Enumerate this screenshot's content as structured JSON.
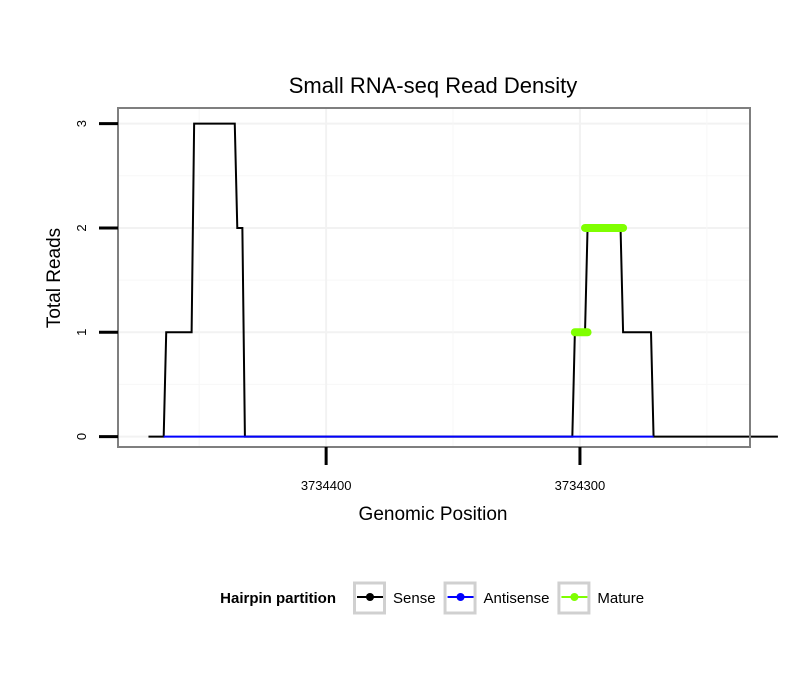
{
  "chart_data": {
    "type": "line",
    "title": "Small RNA-seq Read Density",
    "xlabel": "Genomic Position",
    "ylabel": "Total Reads",
    "x_reversed": true,
    "xlim": [
      3734482,
      3734233
    ],
    "ylim": [
      -0.1,
      3.15
    ],
    "xticks": [
      3734400,
      3734300
    ],
    "xtick_labels": [
      "3734400",
      "3734300"
    ],
    "yticks": [
      0,
      1,
      2,
      3
    ],
    "ytick_labels": [
      "0",
      "1",
      "2",
      "3"
    ],
    "grid": true,
    "legend": {
      "title": "Hairpin partition",
      "position": "bottom",
      "entries": [
        {
          "label": "Sense",
          "color": "#000000"
        },
        {
          "label": "Antisense",
          "color": "#0000ff"
        },
        {
          "label": "Mature",
          "color": "#7fff00"
        }
      ]
    },
    "series": [
      {
        "name": "Sense",
        "color": "#000000",
        "points": [
          [
            3734470,
            0
          ],
          [
            3734464,
            0
          ],
          [
            3734463,
            1
          ],
          [
            3734453,
            1
          ],
          [
            3734452,
            3
          ],
          [
            3734436,
            3
          ],
          [
            3734435,
            2
          ],
          [
            3734433,
            2
          ],
          [
            3734432,
            0
          ],
          [
            3734303,
            0
          ],
          [
            3734302,
            1
          ],
          [
            3734298,
            1
          ],
          [
            3734297,
            2
          ],
          [
            3734284,
            2
          ],
          [
            3734283,
            1
          ],
          [
            3734272,
            1
          ],
          [
            3734271,
            0
          ],
          [
            3734222,
            0
          ]
        ]
      },
      {
        "name": "Antisense",
        "color": "#0000ff",
        "points": [
          [
            3734464,
            0
          ],
          [
            3734432,
            0
          ],
          [
            3734302,
            0
          ],
          [
            3734271,
            0
          ]
        ]
      },
      {
        "name": "Mature",
        "color": "#7fff00",
        "segments": [
          {
            "x_start": 3734302,
            "x_end": 3734297,
            "y": 1
          },
          {
            "x_start": 3734298,
            "x_end": 3734283,
            "y": 2
          }
        ]
      }
    ]
  }
}
